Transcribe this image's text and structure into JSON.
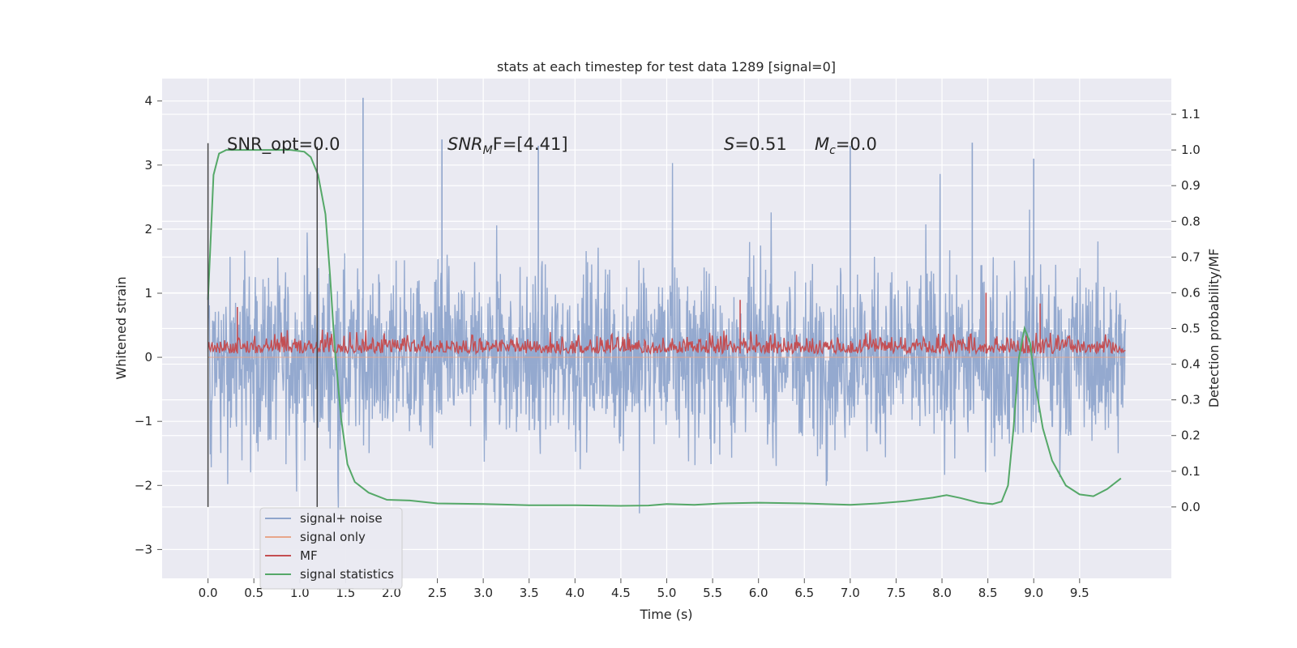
{
  "chart_data": {
    "type": "line",
    "title": "stats at each timestep for test data 1289 [signal=0]",
    "xlabel": "Time (s)",
    "ylabel_left": "Whitened strain",
    "ylabel_right": "Detection probability/MF",
    "xlim": [
      -0.5,
      10.5
    ],
    "ylim_left": [
      -3.45,
      4.35
    ],
    "ylim_right": [
      -0.2,
      1.2
    ],
    "x_ticks": [
      0.0,
      0.5,
      1.0,
      1.5,
      2.0,
      2.5,
      3.0,
      3.5,
      4.0,
      4.5,
      5.0,
      5.5,
      6.0,
      6.5,
      7.0,
      7.5,
      8.0,
      8.5,
      9.0,
      9.5
    ],
    "x_tick_labels": [
      "0.0",
      "0.5",
      "1.0",
      "1.5",
      "2.0",
      "2.5",
      "3.0",
      "3.5",
      "4.0",
      "4.5",
      "5.0",
      "5.5",
      "6.0",
      "6.5",
      "7.0",
      "7.5",
      "8.0",
      "8.5",
      "9.0",
      "9.5"
    ],
    "y_left_ticks": [
      -3,
      -2,
      -1,
      0,
      1,
      2,
      3,
      4
    ],
    "y_left_tick_labels": [
      "−3",
      "−2",
      "−1",
      "0",
      "1",
      "2",
      "3",
      "4"
    ],
    "y_right_ticks": [
      0.0,
      0.1,
      0.2,
      0.3,
      0.4,
      0.5,
      0.6,
      0.7,
      0.8,
      0.9,
      1.0,
      1.1
    ],
    "y_right_tick_labels": [
      "0.0",
      "0.1",
      "0.2",
      "0.3",
      "0.4",
      "0.5",
      "0.6",
      "0.7",
      "0.8",
      "0.9",
      "1.0",
      "1.1"
    ],
    "grid": true,
    "legend_position": "lower-left",
    "annotations": {
      "snr_opt": "SNR_opt=0.0",
      "snr_mf_prefix": "SNR",
      "snr_mf_sub": "M",
      "snr_mf_suffix": "F=[4.41]",
      "s_var": "S",
      "s_value": "=0.51",
      "mc_var": "M",
      "mc_sub": "c",
      "mc_value": "=0.0"
    },
    "vertical_markers": [
      {
        "x": 0.0,
        "y_range_right": [
          0.0,
          1.01
        ]
      },
      {
        "x": 1.19,
        "y_range_right": [
          0.0,
          1.0
        ]
      }
    ],
    "series": [
      {
        "name": "signal+ noise",
        "color": "#8fa5cc",
        "axis": "left",
        "x_range": [
          0.0,
          10.0
        ],
        "description_values": {
          "typical_min": -2.3,
          "typical_max": 2.3,
          "max": 4.05,
          "min": -3.1
        },
        "peaks": [
          [
            1.69,
            4.05
          ],
          [
            7.0,
            3.3
          ],
          [
            8.33,
            3.35
          ],
          [
            9.0,
            3.1
          ],
          [
            2.55,
            3.4
          ],
          [
            3.6,
            3.3
          ]
        ]
      },
      {
        "name": "signal only",
        "color": "#e8a68a",
        "axis": "left",
        "x": [
          0.0,
          10.0
        ],
        "values": [
          0.0,
          0.0
        ]
      },
      {
        "name": "MF",
        "color": "#c44e52",
        "axis": "right",
        "x_range": [
          0.0,
          10.0
        ],
        "baseline": 0.43,
        "range": [
          0.41,
          0.61
        ],
        "peaks": [
          [
            8.48,
            0.6
          ],
          [
            5.8,
            0.58
          ],
          [
            9.07,
            0.57
          ],
          [
            0.32,
            0.56
          ]
        ]
      },
      {
        "name": "signal statistics",
        "color": "#55a868",
        "axis": "right",
        "x": [
          0.0,
          0.06,
          0.12,
          0.2,
          0.35,
          0.6,
          0.9,
          1.05,
          1.12,
          1.2,
          1.28,
          1.33,
          1.38,
          1.45,
          1.52,
          1.6,
          1.75,
          1.95,
          2.2,
          2.5,
          3.0,
          3.5,
          4.0,
          4.5,
          4.8,
          5.0,
          5.3,
          5.6,
          6.0,
          6.5,
          7.0,
          7.3,
          7.6,
          7.9,
          8.05,
          8.2,
          8.4,
          8.55,
          8.65,
          8.72,
          8.78,
          8.84,
          8.9,
          8.96,
          9.02,
          9.1,
          9.2,
          9.35,
          9.5,
          9.65,
          9.8,
          9.95
        ],
        "values": [
          0.58,
          0.93,
          0.99,
          1.0,
          1.0,
          1.0,
          1.0,
          0.995,
          0.98,
          0.93,
          0.82,
          0.65,
          0.45,
          0.25,
          0.12,
          0.07,
          0.04,
          0.02,
          0.018,
          0.01,
          0.008,
          0.005,
          0.005,
          0.003,
          0.004,
          0.008,
          0.006,
          0.01,
          0.012,
          0.01,
          0.006,
          0.01,
          0.016,
          0.026,
          0.033,
          0.025,
          0.012,
          0.008,
          0.015,
          0.06,
          0.22,
          0.42,
          0.5,
          0.46,
          0.34,
          0.22,
          0.13,
          0.06,
          0.035,
          0.03,
          0.05,
          0.08
        ]
      }
    ]
  },
  "legend": [
    {
      "label": "signal+ noise",
      "color": "#8fa5cc"
    },
    {
      "label": "signal only",
      "color": "#e8a68a"
    },
    {
      "label": "MF",
      "color": "#c44e52"
    },
    {
      "label": "signal statistics",
      "color": "#55a868"
    }
  ],
  "colors": {
    "plot_background": "#eaeaf2",
    "grid": "#ffffff",
    "marker_line": "#444444"
  }
}
